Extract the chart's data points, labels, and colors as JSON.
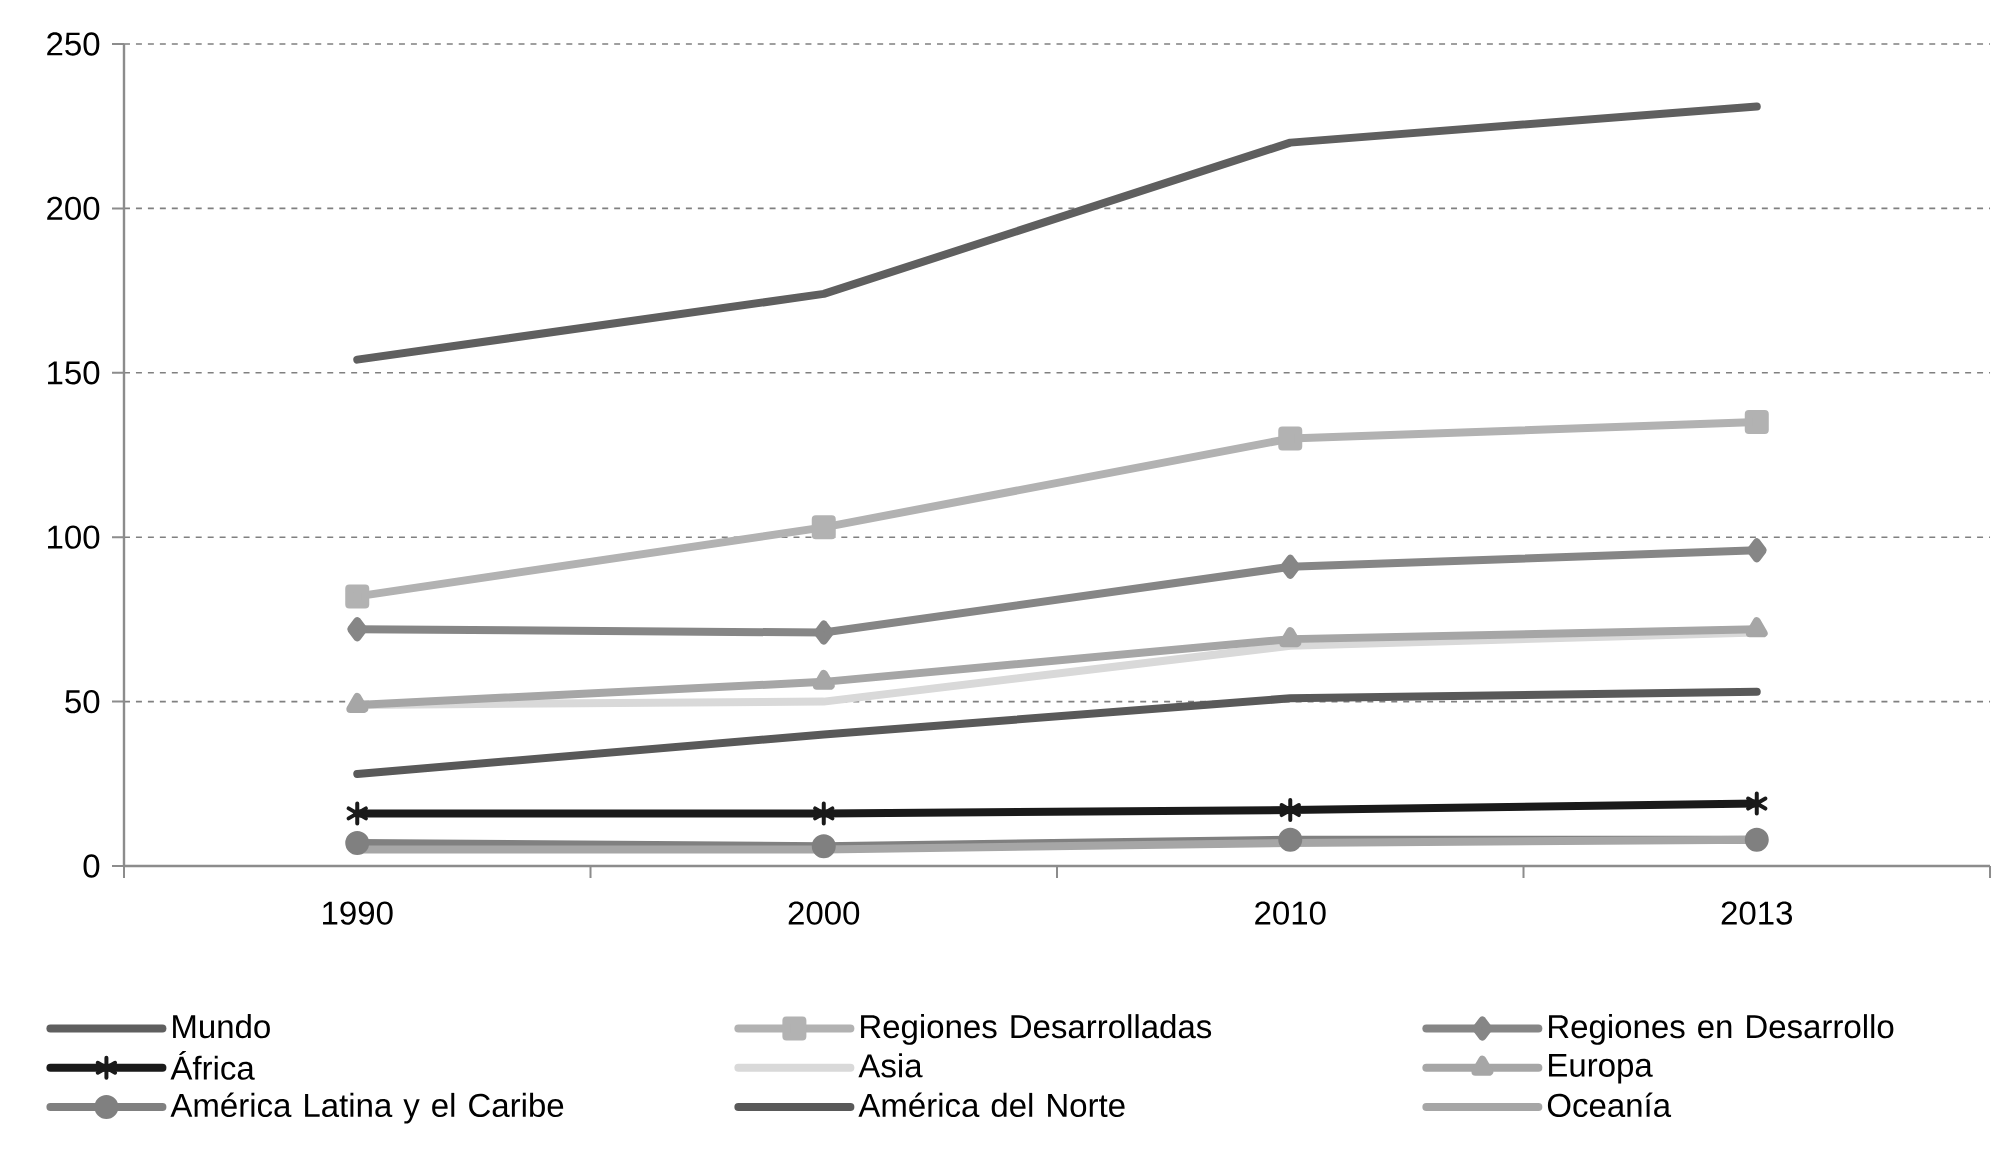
{
  "chart_data": {
    "type": "line",
    "categories": [
      "1990",
      "2000",
      "2010",
      "2013"
    ],
    "ylim": [
      0,
      250
    ],
    "yticks": [
      0,
      50,
      100,
      150,
      200,
      250
    ],
    "grid": "y",
    "legend": "bottom",
    "series": [
      {
        "name": "Mundo",
        "color": "#5f5f5f",
        "marker": "none",
        "values": [
          154,
          174,
          220,
          231
        ]
      },
      {
        "name": "Regiones Desarrolladas",
        "color": "#b2b2b2",
        "marker": "square",
        "values": [
          82,
          103,
          130,
          135
        ]
      },
      {
        "name": "Regiones en Desarrollo",
        "color": "#868686",
        "marker": "diamond",
        "values": [
          72,
          71,
          91,
          96
        ]
      },
      {
        "name": "África",
        "color": "#1a1a1a",
        "marker": "cross",
        "values": [
          16,
          16,
          17,
          19
        ]
      },
      {
        "name": "Asia",
        "color": "#d9d9d9",
        "marker": "none",
        "values": [
          49,
          50,
          67,
          71
        ]
      },
      {
        "name": "Europa",
        "color": "#a6a6a6",
        "marker": "triangle",
        "values": [
          49,
          56,
          69,
          72
        ]
      },
      {
        "name": "América Latina y el Caribe",
        "color": "#808080",
        "marker": "circle",
        "values": [
          7,
          6,
          8,
          8
        ]
      },
      {
        "name": "América del Norte",
        "color": "#595959",
        "marker": "none",
        "values": [
          28,
          40,
          51,
          53
        ]
      },
      {
        "name": "Oceanía",
        "color": "#a6a6a6",
        "marker": "none",
        "values": [
          5,
          5,
          7,
          8
        ]
      }
    ]
  }
}
